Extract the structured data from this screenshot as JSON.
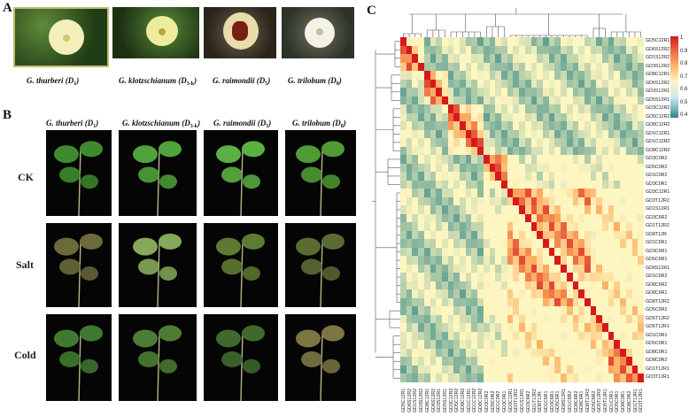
{
  "panels": {
    "a": "A",
    "b": "B",
    "c": "C"
  },
  "species": [
    {
      "name": "G. thurberi",
      "genome": "D",
      "sub": "1"
    },
    {
      "name": "G. klotzschianum",
      "genome": "D",
      "sub": "3-k"
    },
    {
      "name": "G. raimondii",
      "genome": "D",
      "sub": "5"
    },
    {
      "name": "G. trilobum",
      "genome": "D",
      "sub": "8"
    }
  ],
  "treatments": [
    "CK",
    "Salt",
    "Cold"
  ],
  "heatmap": {
    "row_labels": [
      "GD5C12R1",
      "GD6S12R2",
      "GD1S12R2",
      "GD3S12R2",
      "GD8C12R1",
      "GD6S12R2",
      "GD3S12R1",
      "GD5S12R1",
      "GD3C12R2",
      "GD5C12R2",
      "GD8C12R2",
      "GD1C12R1",
      "GD1C12R2",
      "GD8C12R2",
      "GD3C0R2",
      "GD5C0R2",
      "GD1C0R2",
      "GD3C0R1",
      "GD3C12R1",
      "GD3T12R2",
      "GD1S12R1",
      "GD3C6R2",
      "GD1T12R2",
      "GD8T12R",
      "GD1C6R1",
      "GD3C6R1",
      "GD5C6R1",
      "GD8S12R1",
      "GD1C6R2",
      "GD8C6R2",
      "GD8C6R1",
      "GD8T12R2",
      "GD5C6R2",
      "GD5T12R2",
      "GD5T12R1",
      "GD1C0R1",
      "GD5C0R1",
      "GD8C0R1",
      "GD8C0R2",
      "GD1T12R1",
      "GD3T12R1"
    ],
    "col_labels": [
      "GD5C12R1",
      "GD6S12R2",
      "GD1S12R2",
      "GD3S12R2",
      "GD8C12R1",
      "GD6S12R2",
      "GD3S12R1",
      "GD5S12R1",
      "GD3C12R2",
      "GD5C12R2",
      "GD8C12R2",
      "GD1C12R1",
      "GD1C12R2",
      "GD8C12R2",
      "GD3C0R2",
      "GD5C0R2",
      "GD1C0R2",
      "GD3C0R1",
      "GD3C12R1",
      "GD3T12R2",
      "GD1S12R1",
      "GD3C6R2",
      "GD1T12R2",
      "GD8T12R",
      "GD1C6R1",
      "GD3C6R1",
      "GD5C6R1",
      "GD8S12R1",
      "GD1C6R2",
      "GD8C6R2",
      "GD8C6R1",
      "GD8T12R2",
      "GD5C6R2",
      "GD5T12R2",
      "GD5T12R1",
      "GD1C0R1",
      "GD5C0R1",
      "GD8C0R1",
      "GD8C0R2",
      "GD1T12R1",
      "GD3T12R1"
    ],
    "groups": [
      0,
      0,
      0,
      0,
      1,
      1,
      1,
      1,
      2,
      2,
      2,
      2,
      2,
      2,
      3,
      3,
      3,
      3,
      4,
      4,
      4,
      4,
      4,
      4,
      4,
      4,
      4,
      4,
      4,
      4,
      4,
      4,
      5,
      5,
      5,
      6,
      6,
      6,
      6,
      6,
      6
    ],
    "scale": {
      "min": 0.4,
      "max": 1,
      "ticks": [
        "1",
        "0.9",
        "0.8",
        "0.7",
        "0.6",
        "0.5",
        "0.4"
      ]
    },
    "colors": {
      "high": "#d7191c",
      "mid": "#fdf6c0",
      "low": "#2b8383"
    }
  }
}
